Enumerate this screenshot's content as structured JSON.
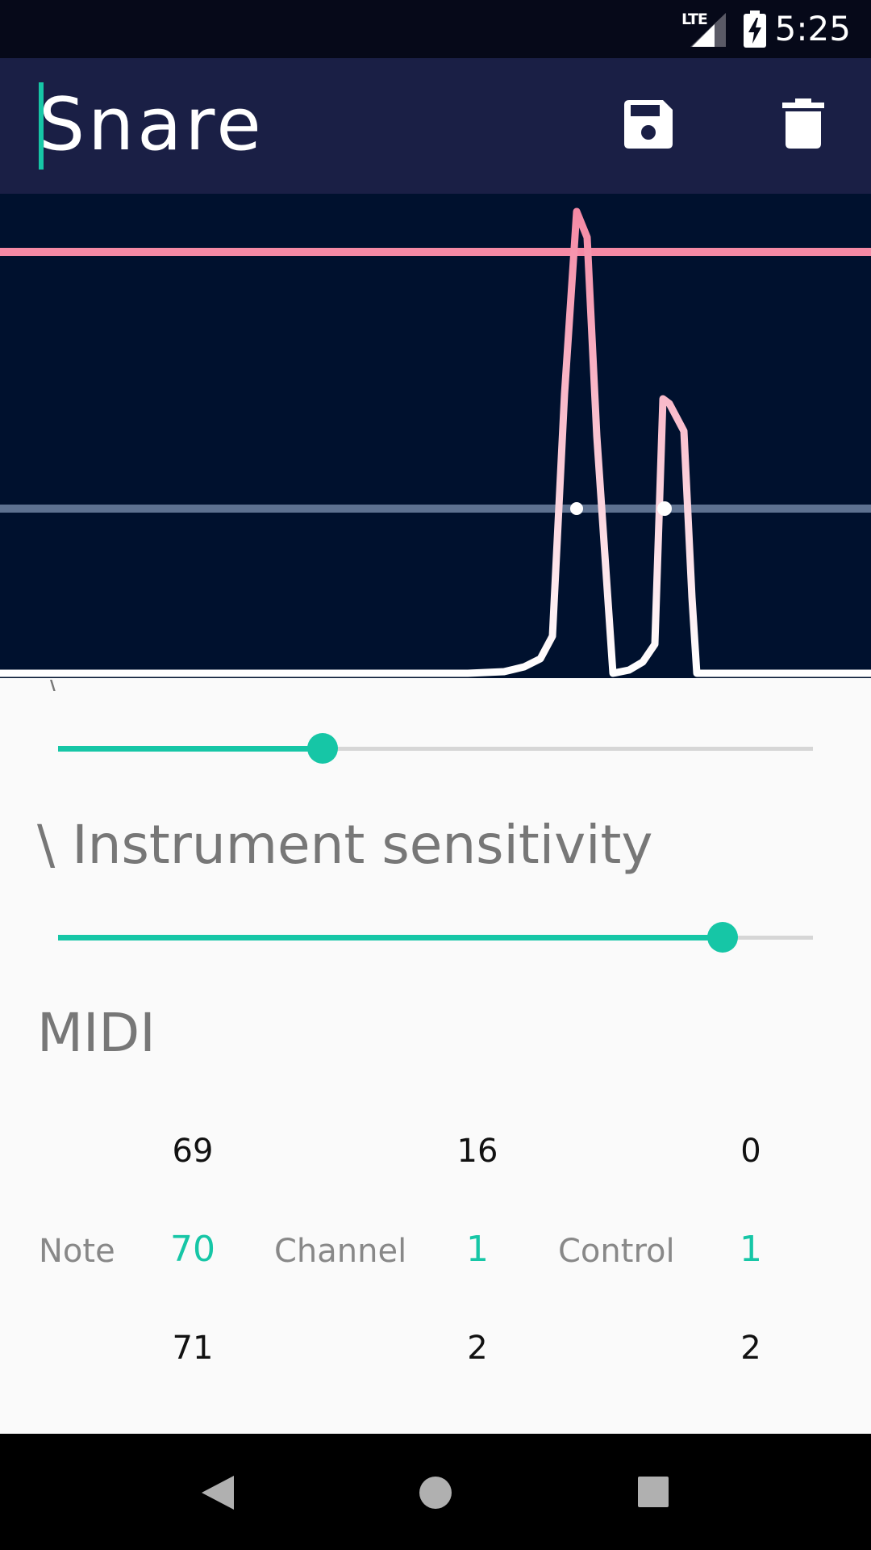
{
  "status_bar": {
    "time": "5:25",
    "network": "LTE"
  },
  "header": {
    "title": "Snare",
    "save_icon": "save-icon",
    "delete_icon": "delete-icon"
  },
  "colors": {
    "accent": "#16c6a6",
    "threshold_line": "#f58aa5",
    "graph_background": "#00112e",
    "app_bar": "#1a1f45"
  },
  "controls": {
    "partial_label": "\\",
    "slider_1_level": 0.35,
    "instrument_sensitivity": {
      "label": "\\ Instrument sensitivity",
      "level": 0.88
    }
  },
  "midi": {
    "title": "MIDI",
    "note": {
      "label": "Note",
      "prev": "69",
      "value": "70",
      "next": "71"
    },
    "channel": {
      "label": "Channel",
      "prev": "16",
      "value": "1",
      "next": "2"
    },
    "control": {
      "label": "Control",
      "prev": "0",
      "value": "1",
      "next": "2"
    }
  }
}
